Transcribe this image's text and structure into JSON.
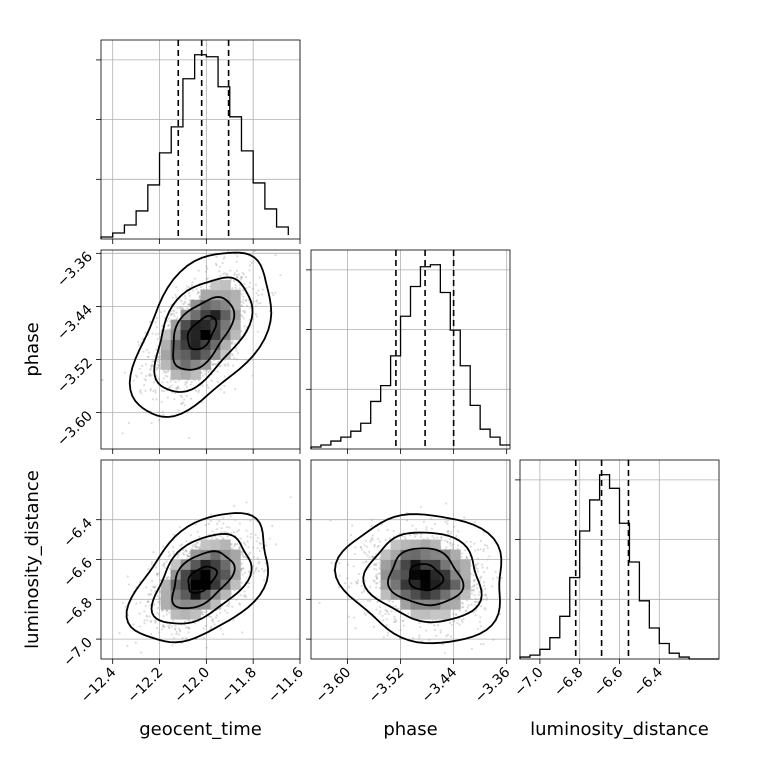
{
  "chart_data": {
    "type": "corner",
    "parameters": [
      {
        "name": "geocent_time",
        "range": [
          -12.45,
          -11.6
        ],
        "ticks": [
          "-12.4",
          "-12.2",
          "-12.0",
          "-11.8",
          "-11.6"
        ],
        "tick_values": [
          -12.4,
          -12.2,
          -12.0,
          -11.8,
          -11.6
        ],
        "quantiles": [
          -12.12,
          -12.02,
          -11.905
        ]
      },
      {
        "name": "phase",
        "range": [
          -3.655,
          -3.355
        ],
        "ticks": [
          "-3.60",
          "-3.52",
          "-3.44",
          "-3.36"
        ],
        "tick_values": [
          -3.6,
          -3.52,
          -3.44,
          -3.36
        ],
        "quantiles": [
          -3.527,
          -3.483,
          -3.44
        ]
      },
      {
        "name": "luminosity_distance",
        "range": [
          -7.1,
          -6.1
        ],
        "ticks": [
          "-7.0",
          "-6.8",
          "-6.6",
          "-6.4"
        ],
        "tick_values": [
          -7.0,
          -6.8,
          -6.6,
          -6.4
        ],
        "quantiles": [
          -6.82,
          -6.69,
          -6.555
        ]
      }
    ],
    "histograms": [
      {
        "parameter": "geocent_time",
        "bin_edges": [
          -12.45,
          -12.4,
          -12.35,
          -12.3,
          -12.25,
          -12.2,
          -12.15,
          -12.1,
          -12.05,
          -12.0,
          -11.95,
          -11.9,
          -11.85,
          -11.8,
          -11.75,
          -11.7,
          -11.65
        ],
        "counts": [
          1,
          3,
          7,
          14,
          27,
          43,
          56,
          80,
          92,
          91,
          76,
          61,
          44,
          28,
          15,
          6,
          2
        ]
      },
      {
        "parameter": "phase",
        "bin_edges": [
          -3.655,
          -3.64,
          -3.625,
          -3.61,
          -3.595,
          -3.58,
          -3.565,
          -3.55,
          -3.535,
          -3.52,
          -3.505,
          -3.49,
          -3.475,
          -3.46,
          -3.445,
          -3.43,
          -3.415,
          -3.4,
          -3.385,
          -3.37,
          -3.355
        ],
        "counts": [
          1,
          2,
          4,
          6,
          9,
          13,
          24,
          32,
          47,
          67,
          82,
          92,
          93,
          79,
          60,
          42,
          22,
          10,
          6,
          2
        ]
      },
      {
        "parameter": "luminosity_distance",
        "bin_edges": [
          -7.1,
          -7.05,
          -7.0,
          -6.95,
          -6.9,
          -6.85,
          -6.8,
          -6.75,
          -6.7,
          -6.65,
          -6.6,
          -6.55,
          -6.5,
          -6.45,
          -6.4,
          -6.35,
          -6.3,
          -6.25,
          -6.2,
          -6.15,
          -6.1
        ],
        "counts": [
          1,
          2,
          5,
          11,
          22,
          42,
          66,
          82,
          95,
          88,
          70,
          50,
          30,
          16,
          8,
          3,
          1,
          0,
          0,
          0
        ]
      }
    ],
    "pairs": [
      {
        "x": "geocent_time",
        "y": "phase",
        "center": [
          -12.02,
          -3.48
        ],
        "sigma": [
          0.1,
          0.042
        ],
        "correlation": 0.5
      },
      {
        "x": "geocent_time",
        "y": "luminosity_distance",
        "center": [
          -12.02,
          -6.7
        ],
        "sigma": [
          0.1,
          0.11
        ],
        "correlation": 0.45
      },
      {
        "x": "phase",
        "y": "luminosity_distance",
        "center": [
          -3.483,
          -6.69
        ],
        "sigma": [
          0.042,
          0.11
        ],
        "correlation": -0.1
      }
    ],
    "grid": true
  }
}
